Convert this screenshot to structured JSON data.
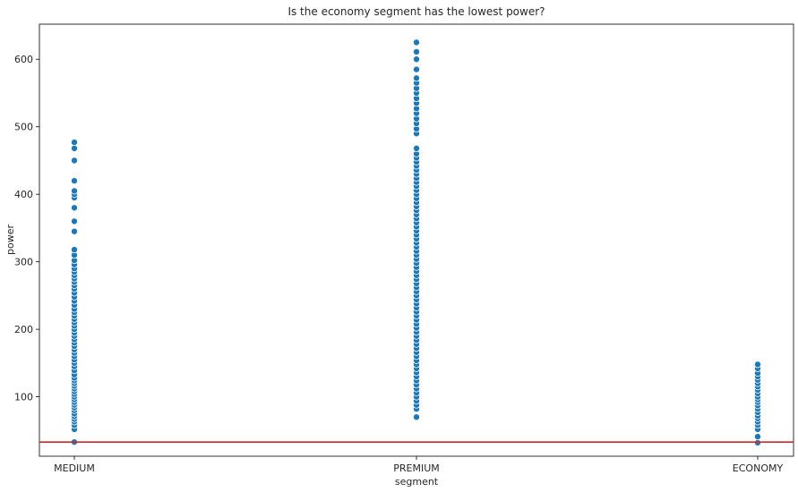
{
  "chart_data": {
    "type": "scatter",
    "title": "Is the economy segment has the lowest power?",
    "xlabel": "segment",
    "ylabel": "power",
    "categories": [
      "MEDIUM",
      "PREMIUM",
      "ECONOMY"
    ],
    "ylim": [
      12,
      652
    ],
    "yticks": [
      100,
      200,
      300,
      400,
      500,
      600
    ],
    "grid": false,
    "marker_color": "#1f77b4",
    "reference_line": {
      "y": 33,
      "color": "#d62728"
    },
    "series": [
      {
        "category": "MEDIUM",
        "values": [
          33,
          52,
          58,
          63,
          67,
          71,
          75,
          80,
          84,
          88,
          92,
          96,
          100,
          104,
          108,
          112,
          116,
          120,
          124,
          128,
          133,
          139,
          145,
          150,
          155,
          160,
          165,
          170,
          175,
          180,
          185,
          190,
          195,
          200,
          205,
          210,
          215,
          220,
          225,
          230,
          236,
          242,
          248,
          254,
          260,
          265,
          270,
          275,
          280,
          285,
          290,
          296,
          302,
          310,
          318,
          345,
          360,
          380,
          395,
          400,
          405,
          420,
          450,
          468,
          477
        ]
      },
      {
        "category": "PREMIUM",
        "values": [
          70,
          82,
          88,
          94,
          100,
          106,
          112,
          118,
          124,
          130,
          136,
          142,
          148,
          154,
          160,
          166,
          172,
          178,
          184,
          190,
          196,
          202,
          208,
          214,
          220,
          226,
          232,
          238,
          244,
          250,
          256,
          262,
          268,
          274,
          280,
          286,
          292,
          298,
          304,
          310,
          316,
          322,
          328,
          334,
          340,
          346,
          352,
          358,
          364,
          370,
          376,
          382,
          388,
          394,
          400,
          406,
          412,
          418,
          424,
          430,
          436,
          442,
          448,
          454,
          460,
          468,
          490,
          497,
          505,
          512,
          520,
          527,
          535,
          542,
          550,
          557,
          565,
          572,
          585,
          600,
          611,
          625
        ]
      },
      {
        "category": "ECONOMY",
        "values": [
          32,
          41,
          52,
          58,
          63,
          68,
          72,
          77,
          82,
          87,
          92,
          96,
          100,
          105,
          110,
          115,
          120,
          125,
          130,
          135,
          142,
          148
        ]
      }
    ]
  }
}
